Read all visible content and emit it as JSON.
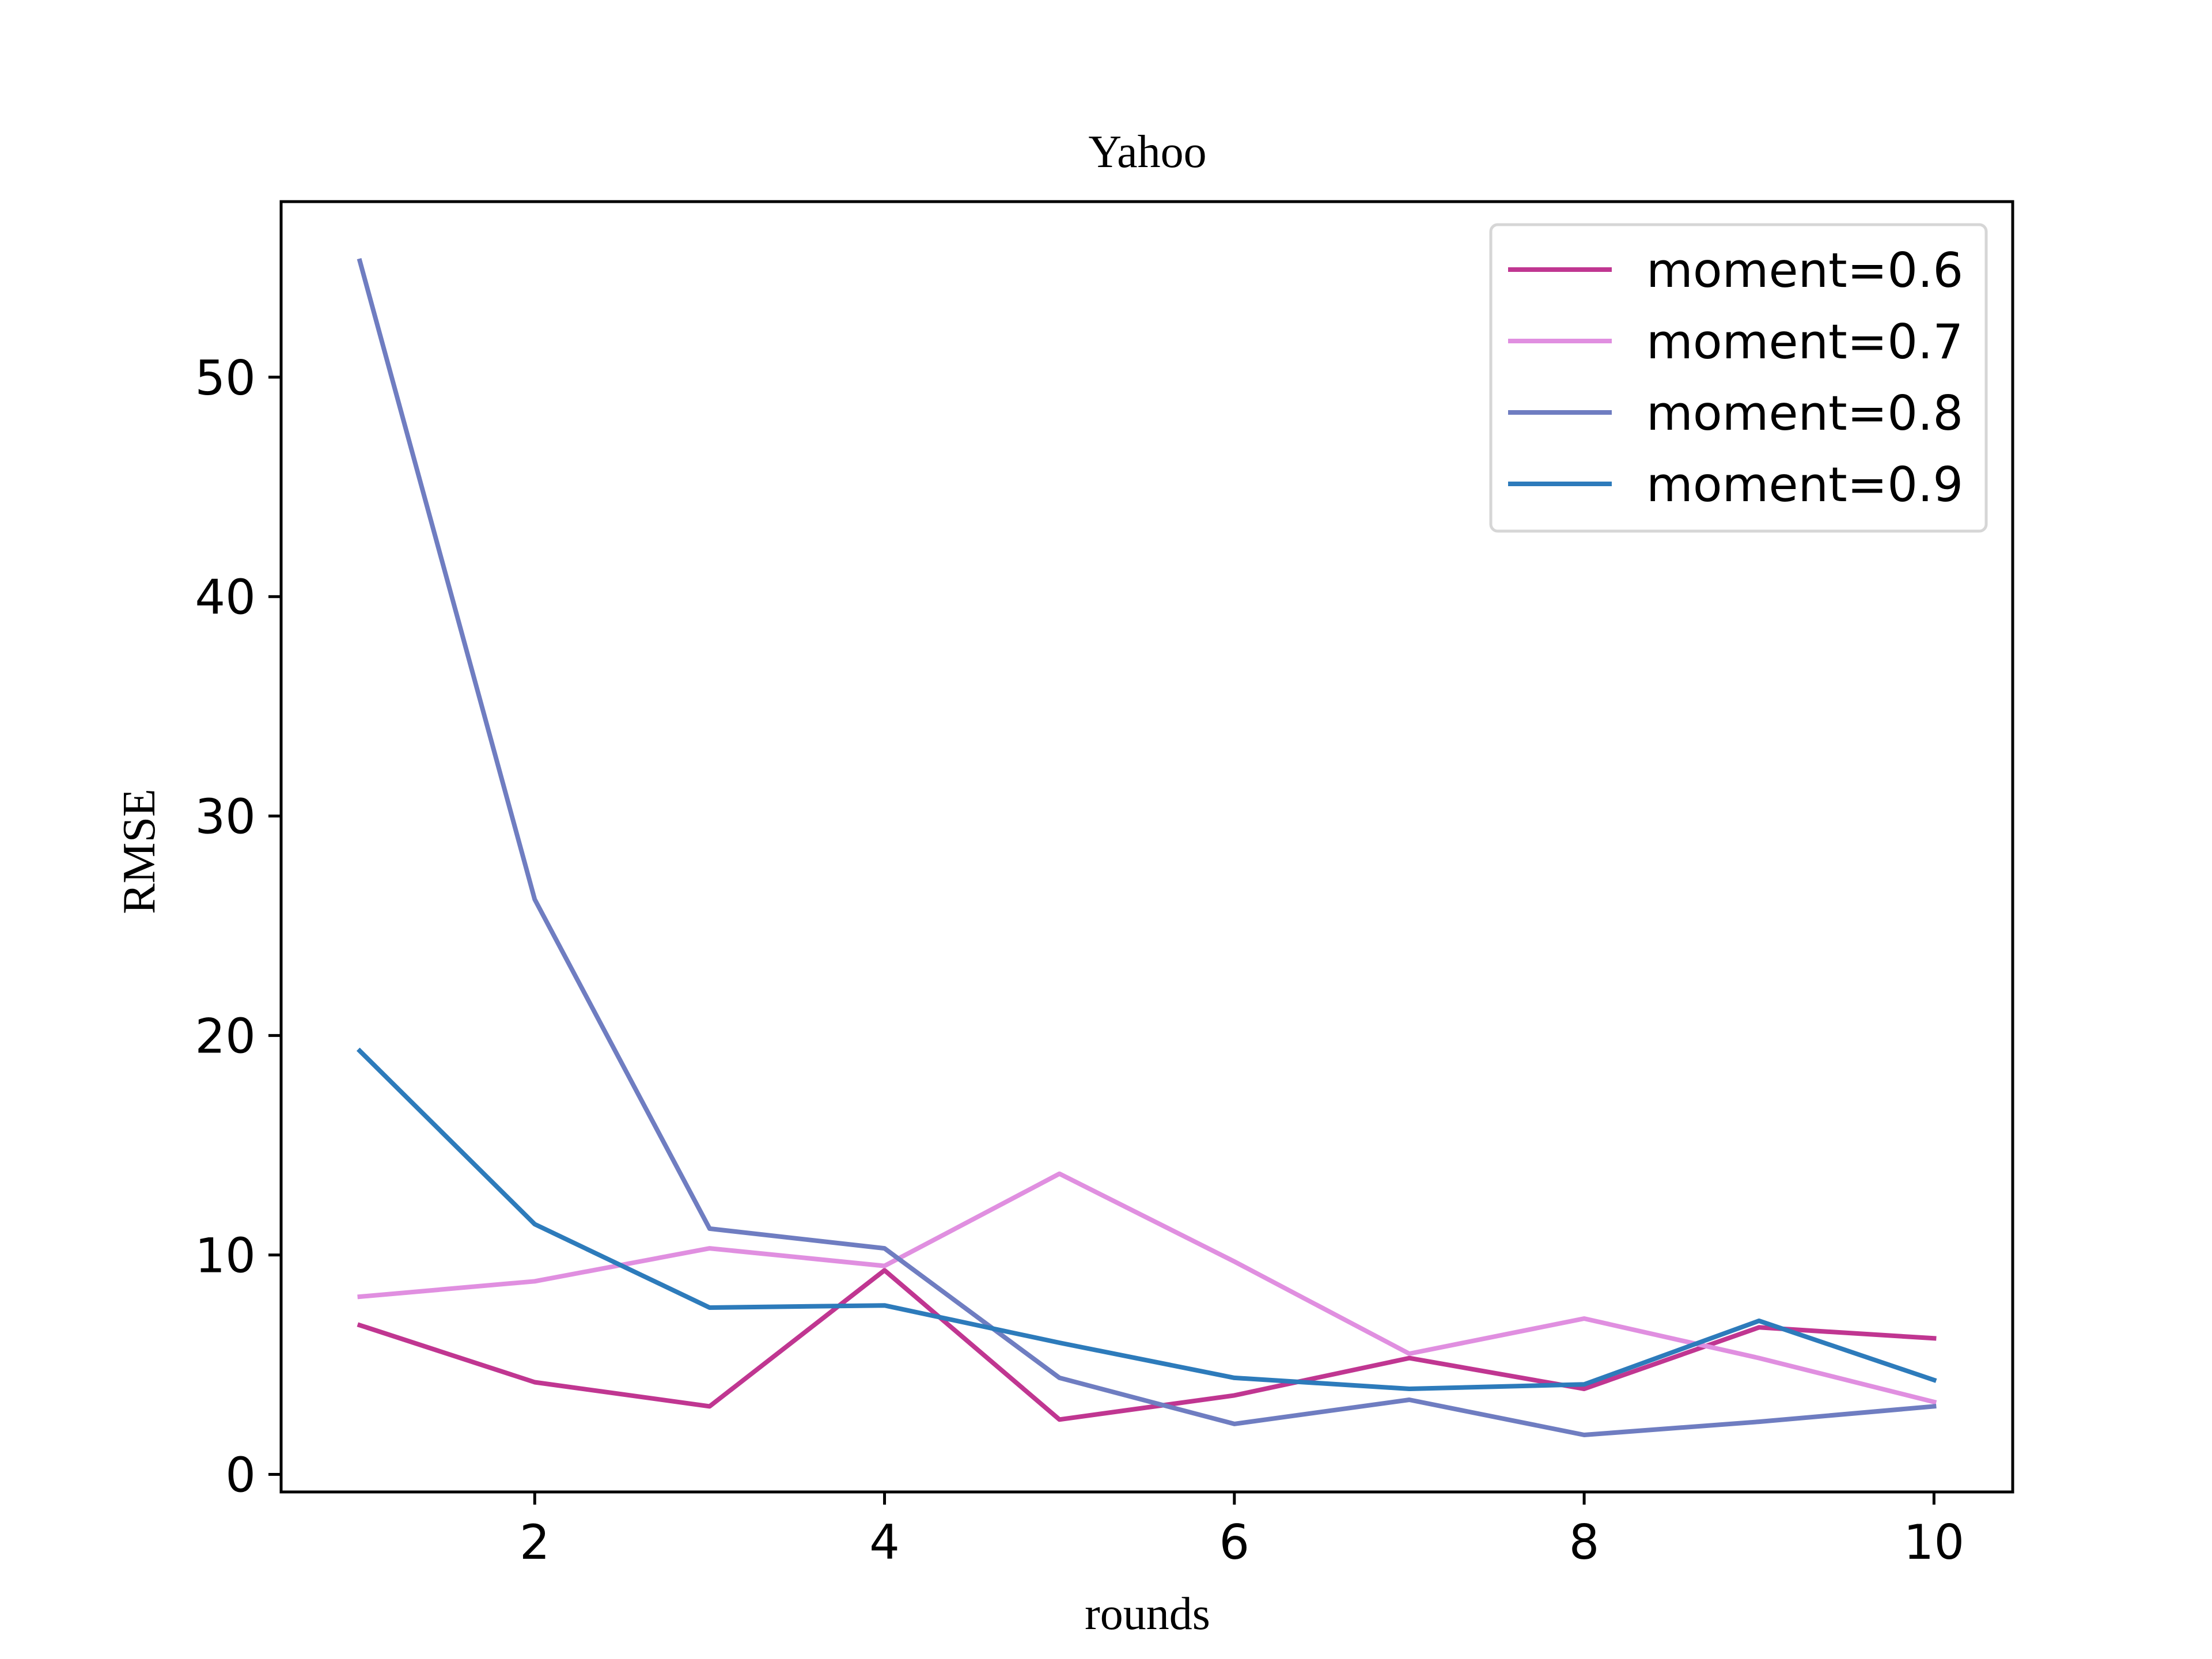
{
  "chart_data": {
    "type": "line",
    "title": "Yahoo",
    "xlabel": "rounds",
    "ylabel": "RMSE",
    "xlim": [
      0.55,
      10.45
    ],
    "ylim": [
      -0.8,
      58.0
    ],
    "xticks": [
      2,
      4,
      6,
      8,
      10
    ],
    "yticks": [
      0,
      10,
      20,
      30,
      40,
      50
    ],
    "grid": false,
    "legend_position": "top-right",
    "x": [
      1,
      2,
      3,
      4,
      5,
      6,
      7,
      8,
      9,
      10
    ],
    "series": [
      {
        "name": "moment=0.6",
        "color": "#c03691",
        "values": [
          6.8,
          4.2,
          3.1,
          9.3,
          2.5,
          3.6,
          5.3,
          3.9,
          6.7,
          6.2
        ]
      },
      {
        "name": "moment=0.7",
        "color": "#e08fe0",
        "values": [
          8.1,
          8.8,
          10.3,
          9.5,
          13.7,
          9.7,
          5.5,
          7.1,
          5.3,
          3.3
        ]
      },
      {
        "name": "moment=0.8",
        "color": "#6f7dc1",
        "values": [
          55.3,
          26.2,
          11.2,
          10.3,
          4.4,
          2.3,
          3.4,
          1.8,
          2.4,
          3.1
        ]
      },
      {
        "name": "moment=0.9",
        "color": "#2d7bbb",
        "values": [
          19.3,
          11.4,
          7.6,
          7.7,
          6.0,
          4.4,
          3.9,
          4.1,
          7.0,
          4.3
        ]
      }
    ]
  }
}
